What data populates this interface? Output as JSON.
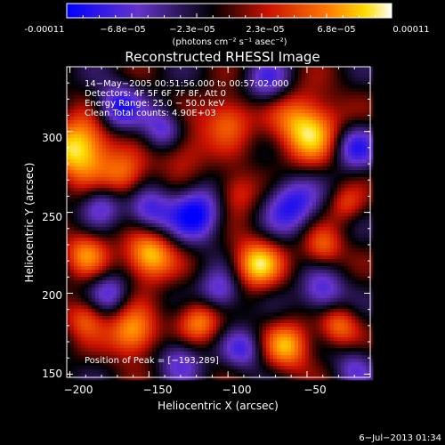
{
  "colorbar": {
    "ticks": [
      "-0.00011",
      "−6.8e−05",
      "−2.3e−05",
      "2.3e−05",
      "6.8e−05",
      "0.00011"
    ],
    "units": "(photons cm⁻² s⁻¹ asec⁻²)",
    "colors": [
      "#0000ff",
      "#6633cc",
      "#000000",
      "#cc1100",
      "#ff7700",
      "#ffffff"
    ]
  },
  "chart_data": {
    "type": "heatmap",
    "title": "Reconstructed RHESSI Image",
    "xlabel": "Heliocentric X (arcsec)",
    "ylabel": "Heliocentric Y (arcsec)",
    "xlim": [
      -202,
      -10
    ],
    "ylim": [
      148,
      340
    ],
    "x_ticks": [
      -200,
      -150,
      -100,
      -50
    ],
    "x_tick_labels": [
      "−200",
      "−150",
      "−100",
      "−50"
    ],
    "y_ticks": [
      150,
      200,
      250,
      300
    ],
    "y_tick_labels": [
      "150",
      "200",
      "250",
      "300"
    ],
    "info_lines": [
      "14−May−2005 00:51:56.000 to 00:57:02.000",
      "Detectors: 4F 5F 6F 7F 8F, Att 0",
      "Energy Range: 25.0 − 50.0 keV",
      "Clean     Total counts: 4.90E+03"
    ],
    "peak_label": "Position of Peak = [−193,289]",
    "peak": [
      -193,
      289
    ],
    "blobs": [
      {
        "x": -193,
        "y": 289,
        "a": 1.0,
        "s": 14
      },
      {
        "x": -165,
        "y": 272,
        "a": 0.55,
        "s": 10
      },
      {
        "x": -130,
        "y": 290,
        "a": 0.55,
        "s": 12
      },
      {
        "x": -50,
        "y": 302,
        "a": 0.9,
        "s": 15
      },
      {
        "x": -100,
        "y": 308,
        "a": 0.6,
        "s": 11
      },
      {
        "x": -95,
        "y": 262,
        "a": 0.5,
        "s": 10
      },
      {
        "x": -190,
        "y": 225,
        "a": 0.6,
        "s": 10
      },
      {
        "x": -150,
        "y": 223,
        "a": 0.9,
        "s": 11
      },
      {
        "x": -82,
        "y": 218,
        "a": 0.85,
        "s": 11
      },
      {
        "x": -40,
        "y": 228,
        "a": 0.55,
        "s": 9
      },
      {
        "x": -160,
        "y": 175,
        "a": 0.8,
        "s": 11
      },
      {
        "x": -118,
        "y": 183,
        "a": 0.7,
        "s": 10
      },
      {
        "x": -190,
        "y": 185,
        "a": 0.55,
        "s": 9
      },
      {
        "x": -62,
        "y": 167,
        "a": 0.7,
        "s": 11
      },
      {
        "x": -30,
        "y": 180,
        "a": 0.6,
        "s": 9
      },
      {
        "x": -25,
        "y": 255,
        "a": 0.4,
        "s": 8
      },
      {
        "x": -170,
        "y": 315,
        "a": -0.7,
        "s": 10
      },
      {
        "x": -140,
        "y": 300,
        "a": -0.7,
        "s": 10
      },
      {
        "x": -120,
        "y": 250,
        "a": -0.8,
        "s": 12
      },
      {
        "x": -60,
        "y": 255,
        "a": -0.7,
        "s": 12
      },
      {
        "x": -20,
        "y": 290,
        "a": -0.6,
        "s": 10
      },
      {
        "x": -150,
        "y": 250,
        "a": -0.6,
        "s": 10
      },
      {
        "x": -105,
        "y": 200,
        "a": -0.6,
        "s": 10
      },
      {
        "x": -40,
        "y": 200,
        "a": -0.6,
        "s": 10
      },
      {
        "x": -175,
        "y": 200,
        "a": -0.5,
        "s": 9
      },
      {
        "x": -130,
        "y": 160,
        "a": -0.5,
        "s": 10
      },
      {
        "x": -90,
        "y": 165,
        "a": -0.5,
        "s": 9
      },
      {
        "x": -20,
        "y": 155,
        "a": -0.4,
        "s": 9
      },
      {
        "x": -75,
        "y": 330,
        "a": -0.5,
        "s": 10
      },
      {
        "x": -180,
        "y": 255,
        "a": -0.5,
        "s": 9
      }
    ]
  },
  "timestamp": "6−Jul−2013 01:34"
}
